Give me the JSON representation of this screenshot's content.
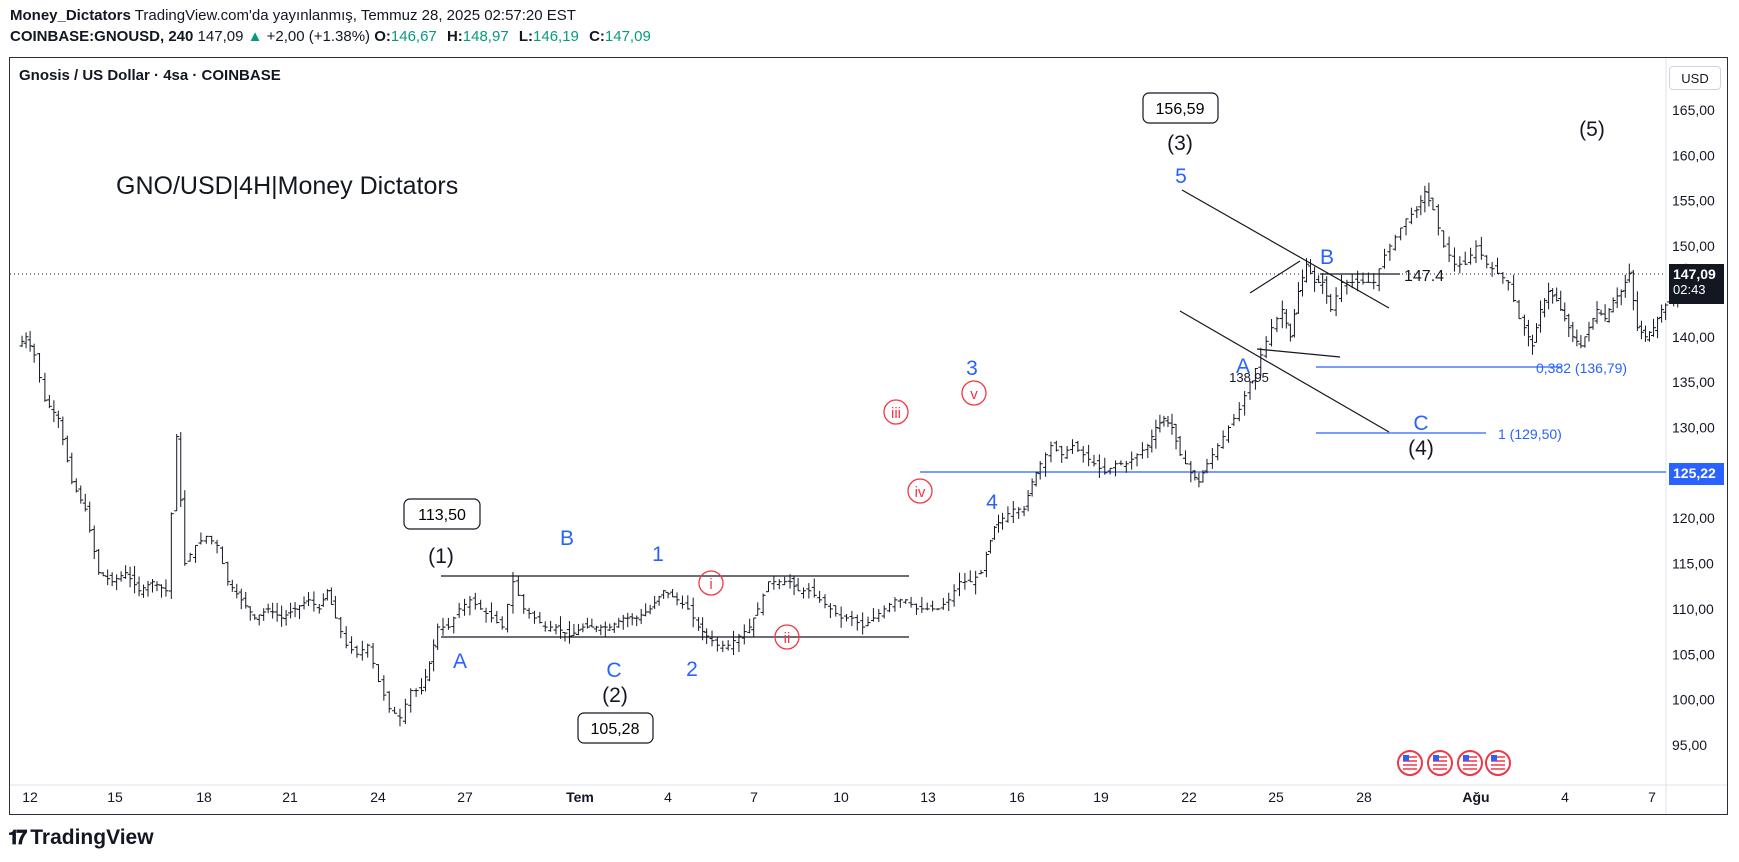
{
  "header": {
    "author": "Money_Dictators",
    "published": "TradingView.com'da yayınlanmış, Temmuz 28, 2025 02:57:20 EST",
    "symbol": "COINBASE:GNOUSD, 240",
    "last": "147,09",
    "change_arrow": "▲",
    "change": "+2,00 (+1.38%)",
    "o_label": "O:",
    "o_val": "146,67",
    "h_label": "H:",
    "h_val": "148,97",
    "l_label": "L:",
    "l_val": "146,19",
    "c_label": "C:",
    "c_val": "147,09"
  },
  "instrument_title": "Gnosis / US Dollar · 4sa · COINBASE",
  "currency_button": "USD",
  "price_scale": {
    "ticks": [
      "165,00",
      "160,00",
      "155,00",
      "150,00",
      "145,00",
      "140,00",
      "135,00",
      "130,00",
      "125,00",
      "120,00",
      "115,00",
      "110,00",
      "105,00",
      "100,00",
      "95,00"
    ],
    "last_price": "147,09",
    "countdown": "02:43",
    "level_tag": "125,22"
  },
  "time_axis": [
    "12",
    "15",
    "18",
    "21",
    "24",
    "27",
    "Tem",
    "4",
    "7",
    "10",
    "13",
    "16",
    "19",
    "22",
    "25",
    "28",
    "Ağu",
    "4",
    "7"
  ],
  "footer_brand": "TradingView",
  "colors": {
    "bull": "#089981",
    "blue": "#2962ff",
    "wave_red": "#f23645",
    "ink": "#131722"
  },
  "chart_data": {
    "type": "candlestick",
    "title": "GNO/USD|4H|Money Dictators",
    "ylim": [
      92,
      168
    ],
    "ohlc_path": [
      [
        0,
        139
      ],
      [
        0.3,
        140
      ],
      [
        0.6,
        138
      ],
      [
        1,
        133
      ],
      [
        1.5,
        131
      ],
      [
        2,
        124
      ],
      [
        2.5,
        121
      ],
      [
        3,
        114
      ],
      [
        3.5,
        113
      ],
      [
        4,
        114
      ],
      [
        4.5,
        112
      ],
      [
        5,
        113
      ],
      [
        5.5,
        112
      ],
      [
        5.9,
        129
      ],
      [
        6.2,
        115
      ],
      [
        6.6,
        117
      ],
      [
        7,
        118
      ],
      [
        7.4,
        117
      ],
      [
        7.8,
        113
      ],
      [
        8.3,
        111
      ],
      [
        8.8,
        109
      ],
      [
        9.3,
        110
      ],
      [
        9.8,
        109
      ],
      [
        10.3,
        110
      ],
      [
        10.8,
        111
      ],
      [
        11.2,
        110
      ],
      [
        11.5,
        112
      ],
      [
        11.8,
        109
      ],
      [
        12.2,
        106
      ],
      [
        12.6,
        105
      ],
      [
        13,
        106
      ],
      [
        13.4,
        102
      ],
      [
        13.8,
        99
      ],
      [
        14.2,
        98
      ],
      [
        14.6,
        101
      ],
      [
        15,
        101
      ],
      [
        15.3,
        104
      ],
      [
        15.6,
        108
      ],
      [
        16,
        108
      ],
      [
        16.4,
        110
      ],
      [
        16.8,
        111
      ],
      [
        17.2,
        110
      ],
      [
        17.6,
        109
      ],
      [
        18,
        108
      ],
      [
        18.4,
        113
      ],
      [
        18.8,
        110
      ],
      [
        19.2,
        109
      ],
      [
        19.6,
        108
      ],
      [
        20,
        108
      ],
      [
        20.5,
        107
      ],
      [
        21,
        108
      ],
      [
        21.5,
        108
      ],
      [
        22,
        108
      ],
      [
        22.5,
        109
      ],
      [
        23,
        109
      ],
      [
        23.5,
        110
      ],
      [
        24,
        112
      ],
      [
        24.5,
        111
      ],
      [
        24.9,
        110
      ],
      [
        25.3,
        108
      ],
      [
        25.6,
        107
      ],
      [
        26,
        106
      ],
      [
        26.4,
        106
      ],
      [
        26.8,
        107
      ],
      [
        27.2,
        108
      ],
      [
        27.5,
        110
      ],
      [
        27.9,
        113
      ],
      [
        28.3,
        113
      ],
      [
        28.7,
        113
      ],
      [
        29,
        112
      ],
      [
        29.4,
        112
      ],
      [
        29.8,
        111
      ],
      [
        30.2,
        110
      ],
      [
        30.6,
        109
      ],
      [
        31,
        109
      ],
      [
        31.4,
        108
      ],
      [
        31.8,
        109
      ],
      [
        32.2,
        110
      ],
      [
        32.6,
        111
      ],
      [
        33,
        111
      ],
      [
        33.4,
        110
      ],
      [
        33.8,
        110
      ],
      [
        34.2,
        110
      ],
      [
        34.6,
        111
      ],
      [
        35,
        113
      ],
      [
        35.4,
        113
      ],
      [
        35.8,
        114
      ],
      [
        36,
        116
      ],
      [
        36.3,
        119
      ],
      [
        36.6,
        120
      ],
      [
        37,
        121
      ],
      [
        37.4,
        121
      ],
      [
        37.7,
        124
      ],
      [
        38,
        126
      ],
      [
        38.4,
        128
      ],
      [
        38.8,
        127
      ],
      [
        39.2,
        128
      ],
      [
        39.6,
        127
      ],
      [
        40,
        126
      ],
      [
        40.4,
        125
      ],
      [
        40.8,
        126
      ],
      [
        41.2,
        126
      ],
      [
        41.6,
        127
      ],
      [
        42,
        128
      ],
      [
        42.3,
        130
      ],
      [
        42.6,
        131
      ],
      [
        42.9,
        130
      ],
      [
        43.2,
        127
      ],
      [
        43.6,
        125
      ],
      [
        43.9,
        124
      ],
      [
        44.2,
        126
      ],
      [
        44.6,
        128
      ],
      [
        45,
        130
      ],
      [
        45.4,
        132
      ],
      [
        45.8,
        135
      ],
      [
        46.2,
        138
      ],
      [
        46.6,
        141
      ],
      [
        47,
        143
      ],
      [
        47.3,
        140
      ],
      [
        47.6,
        145
      ],
      [
        47.9,
        148
      ],
      [
        48.2,
        146
      ],
      [
        48.5,
        146
      ],
      [
        48.8,
        143
      ],
      [
        49.2,
        146
      ],
      [
        49.6,
        146
      ],
      [
        50,
        146
      ],
      [
        50.4,
        146
      ],
      [
        50.8,
        149
      ],
      [
        51.2,
        151
      ],
      [
        51.6,
        153
      ],
      [
        52,
        154
      ],
      [
        52.3,
        156
      ],
      [
        52.6,
        154
      ],
      [
        52.8,
        152
      ],
      [
        53,
        150
      ],
      [
        53.4,
        148
      ],
      [
        53.8,
        148
      ],
      [
        54.2,
        150
      ],
      [
        54.6,
        148
      ],
      [
        55,
        147
      ],
      [
        55.4,
        146
      ],
      [
        55.6,
        144
      ],
      [
        55.8,
        142
      ],
      [
        56,
        141
      ],
      [
        56.3,
        139
      ],
      [
        56.6,
        143
      ],
      [
        56.9,
        145
      ],
      [
        57.2,
        144
      ],
      [
        57.5,
        142
      ],
      [
        57.8,
        140
      ],
      [
        58.1,
        139
      ],
      [
        58.4,
        141
      ],
      [
        58.7,
        143
      ],
      [
        59,
        142
      ],
      [
        59.3,
        144
      ],
      [
        59.6,
        145
      ],
      [
        59.9,
        147
      ],
      [
        60.2,
        141
      ],
      [
        60.5,
        140
      ],
      [
        60.8,
        141
      ],
      [
        61.1,
        143
      ],
      [
        61.4,
        144
      ],
      [
        61.7,
        145
      ],
      [
        62,
        147
      ]
    ],
    "wave_labels": [
      {
        "text": "(1)",
        "color": "ink"
      },
      {
        "text": "(2)",
        "color": "ink"
      },
      {
        "text": "(3)",
        "color": "ink"
      },
      {
        "text": "(4)",
        "color": "ink"
      },
      {
        "text": "(5)",
        "color": "ink"
      },
      {
        "text": "A",
        "color": "blue"
      },
      {
        "text": "B",
        "color": "blue"
      },
      {
        "text": "C",
        "color": "blue"
      },
      {
        "text": "1",
        "color": "blue"
      },
      {
        "text": "2",
        "color": "blue"
      },
      {
        "text": "3",
        "color": "blue"
      },
      {
        "text": "4",
        "color": "blue"
      },
      {
        "text": "5",
        "color": "blue"
      },
      {
        "text": "A",
        "color": "blue"
      },
      {
        "text": "B",
        "color": "blue"
      },
      {
        "text": "C",
        "color": "blue"
      },
      {
        "text": "i",
        "color": "red"
      },
      {
        "text": "ii",
        "color": "red"
      },
      {
        "text": "iii",
        "color": "red"
      },
      {
        "text": "iv",
        "color": "red"
      },
      {
        "text": "v",
        "color": "red"
      }
    ],
    "price_boxes": [
      "113,50",
      "105,28",
      "156,59"
    ],
    "annotations": {
      "low_label": "138,95",
      "line_label": "147.4",
      "fib_382": "0,382 (136,79)",
      "fib_1": "1 (129,50)"
    },
    "events_icon": "economic-calendar-flag-icon"
  }
}
